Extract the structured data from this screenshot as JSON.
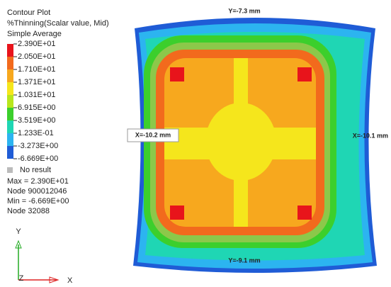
{
  "legend": {
    "title_lines": [
      "Contour Plot",
      "%Thinning(Scalar value, Mid)",
      "Simple Average"
    ],
    "levels": [
      "2.390E+01",
      "2.050E+01",
      "1.710E+01",
      "1.371E+01",
      "1.031E+01",
      "6.915E+00",
      "3.519E+00",
      "1.233E-01",
      "-3.273E+00",
      "-6.669E+00"
    ],
    "band_colors": [
      "#e8141b",
      "#f26a1d",
      "#f7a81e",
      "#f5e61c",
      "#b8e61c",
      "#3ccf2c",
      "#1fd6b4",
      "#2cb4f0",
      "#1f5cd6"
    ],
    "no_result": "No result",
    "stats": [
      "Max = 2.390E+01",
      "Node 900012046",
      "Min = -6.669E+00",
      "Node 32088"
    ]
  },
  "annotations": {
    "top": "Y=-7.3 mm",
    "left": "X=-10.2 mm",
    "right": "X=-10.1 mm",
    "bottom": "Y=-9.1 mm"
  },
  "triad": {
    "y": "Y",
    "z": "Z",
    "x": "X"
  }
}
